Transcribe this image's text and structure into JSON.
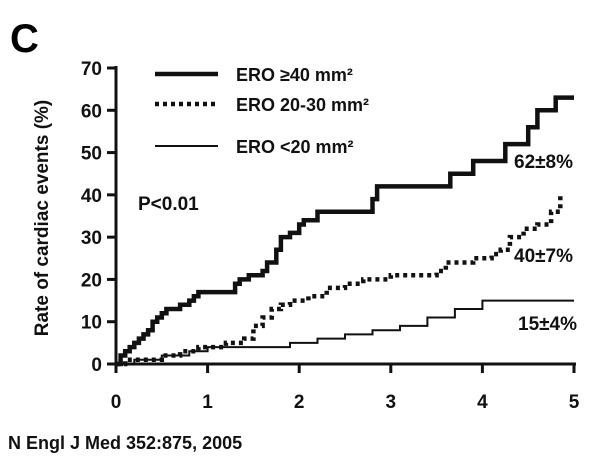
{
  "panel_letter": "C",
  "citation": "N Engl J Med 352:875, 2005",
  "chart_data": {
    "type": "line",
    "title": "",
    "xlabel": "",
    "ylabel": "Rate of cardiac events (%)",
    "xlim": [
      0,
      5
    ],
    "ylim": [
      0,
      70
    ],
    "x_ticks": [
      "0",
      "1",
      "2",
      "3",
      "4",
      "5"
    ],
    "y_ticks": [
      "0",
      "10",
      "20",
      "30",
      "40",
      "50",
      "60",
      "70"
    ],
    "grid": false,
    "legend_position": "top-left",
    "p_value": "P<0.01",
    "series": [
      {
        "name": "ERO ≥40 mm²",
        "style": "solid-thick",
        "end_label": "62±8%",
        "x": [
          0,
          0.05,
          0.1,
          0.15,
          0.2,
          0.25,
          0.3,
          0.35,
          0.4,
          0.45,
          0.5,
          0.55,
          0.6,
          0.7,
          0.8,
          0.85,
          0.9,
          1.2,
          1.3,
          1.35,
          1.45,
          1.6,
          1.65,
          1.75,
          1.8,
          1.9,
          2.0,
          2.05,
          2.2,
          2.5,
          2.6,
          2.8,
          2.85,
          3.2,
          3.3,
          3.6,
          3.65,
          3.9,
          4.2,
          4.25,
          4.45,
          4.5,
          4.6,
          4.7,
          4.8,
          5.0
        ],
        "y": [
          0,
          2,
          3,
          4,
          5,
          6,
          7,
          8,
          10,
          11,
          12,
          13,
          13,
          14,
          15,
          16,
          17,
          17,
          19,
          20,
          21,
          22,
          24,
          27,
          30,
          31,
          33,
          34,
          36,
          36,
          36,
          39,
          42,
          42,
          42,
          42,
          45,
          48,
          48,
          52,
          52,
          56,
          60,
          60,
          63,
          63
        ]
      },
      {
        "name": "ERO 20-30 mm²",
        "style": "dotted",
        "end_label": "40±7%",
        "x": [
          0,
          0.1,
          0.3,
          0.5,
          0.7,
          0.9,
          1.0,
          1.2,
          1.4,
          1.5,
          1.6,
          1.7,
          1.8,
          1.9,
          2.0,
          2.1,
          2.3,
          2.5,
          2.7,
          3.0,
          3.2,
          3.5,
          3.6,
          3.8,
          3.9,
          4.1,
          4.2,
          4.3,
          4.45,
          4.6,
          4.75,
          4.85
        ],
        "y": [
          0,
          1,
          1,
          2,
          3,
          4,
          4,
          5,
          6,
          9,
          11,
          13,
          14,
          15,
          15,
          16,
          18,
          19,
          20,
          21,
          21,
          22,
          24,
          24,
          25,
          26,
          27,
          30,
          32,
          33,
          36,
          40
        ]
      },
      {
        "name": "ERO <20 mm²",
        "style": "solid-thin",
        "end_label": "15±4%",
        "x": [
          0,
          0.2,
          0.5,
          0.8,
          1.0,
          1.3,
          1.6,
          1.9,
          2.2,
          2.5,
          2.8,
          3.1,
          3.4,
          3.7,
          4.0,
          4.3,
          4.6,
          5.0
        ],
        "y": [
          0,
          1,
          2,
          3,
          4,
          4,
          4,
          5,
          6,
          7,
          8,
          9,
          11,
          13,
          15,
          15,
          15,
          15
        ]
      }
    ]
  }
}
